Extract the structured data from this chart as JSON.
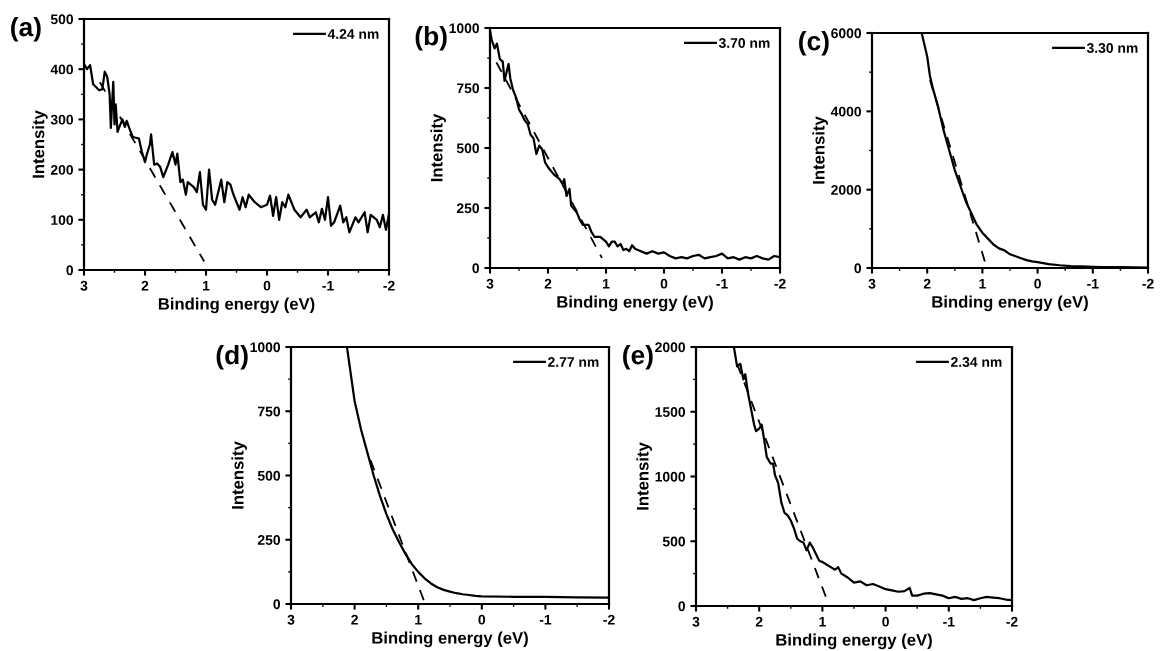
{
  "chart_data": [
    {
      "type": "line",
      "title": "(a)",
      "xlabel": "Binding energy (eV)",
      "ylabel": "Intensity",
      "xlim": [
        3,
        -2
      ],
      "xticks": [
        3,
        2,
        1,
        0,
        -1,
        -2
      ],
      "ylim": [
        0,
        500
      ],
      "yticks": [
        0,
        100,
        200,
        300,
        400,
        500
      ],
      "grid": false,
      "legend": "top right",
      "series": [
        {
          "name": "4.24 nm",
          "color": "#000000",
          "line_style": "solid",
          "x": [
            3.0,
            2.95,
            2.9,
            2.85,
            2.75,
            2.7,
            2.66,
            2.62,
            2.58,
            2.56,
            2.54,
            2.52,
            2.5,
            2.48,
            2.45,
            2.42,
            2.37,
            2.33,
            2.3,
            2.25,
            2.2,
            2.1,
            2.05,
            2.0,
            1.97,
            1.92,
            1.9,
            1.85,
            1.8,
            1.75,
            1.7,
            1.62,
            1.55,
            1.5,
            1.47,
            1.42,
            1.38,
            1.33,
            1.3,
            1.2,
            1.15,
            1.1,
            1.05,
            1.0,
            0.95,
            0.9,
            0.85,
            0.75,
            0.7,
            0.65,
            0.6,
            0.55,
            0.45,
            0.4,
            0.35,
            0.3,
            0.2,
            0.1,
            0.0,
            -0.05,
            -0.1,
            -0.15,
            -0.2,
            -0.25,
            -0.3,
            -0.35,
            -0.45,
            -0.55,
            -0.65,
            -0.7,
            -0.8,
            -0.85,
            -0.9,
            -0.95,
            -1.0,
            -1.05,
            -1.1,
            -1.2,
            -1.25,
            -1.3,
            -1.35,
            -1.45,
            -1.5,
            -1.6,
            -1.65,
            -1.7,
            -1.8,
            -1.85,
            -1.9,
            -1.95,
            -2.0
          ],
          "values": [
            410,
            400,
            408,
            370,
            358,
            360,
            395,
            385,
            350,
            283,
            330,
            375,
            290,
            330,
            275,
            285,
            300,
            285,
            297,
            280,
            265,
            262,
            235,
            215,
            230,
            250,
            270,
            210,
            212,
            205,
            185,
            210,
            235,
            210,
            232,
            175,
            180,
            150,
            175,
            165,
            155,
            195,
            130,
            120,
            200,
            140,
            130,
            180,
            135,
            175,
            170,
            150,
            120,
            145,
            125,
            150,
            135,
            125,
            130,
            148,
            108,
            145,
            100,
            135,
            125,
            150,
            120,
            105,
            120,
            105,
            115,
            95,
            122,
            100,
            145,
            88,
            95,
            128,
            95,
            105,
            75,
            105,
            95,
            115,
            75,
            110,
            100,
            85,
            110,
            80,
            112
          ]
        },
        {
          "color": "#000000",
          "line_style": "dashed",
          "x": [
            2.74,
            1.03
          ],
          "values": [
            374,
            17
          ]
        }
      ]
    },
    {
      "type": "line",
      "title": "(b)",
      "xlabel": "Binding energy (eV)",
      "ylabel": "Intensity",
      "xlim": [
        3,
        -2
      ],
      "xticks": [
        3,
        2,
        1,
        0,
        -1,
        -2
      ],
      "ylim": [
        0,
        1000
      ],
      "yticks": [
        0,
        250,
        500,
        750,
        1000
      ],
      "grid": false,
      "legend": "top right",
      "series": [
        {
          "name": "3.70 nm",
          "color": "#000000",
          "line_style": "solid",
          "x": [
            3.0,
            2.97,
            2.92,
            2.88,
            2.83,
            2.78,
            2.75,
            2.72,
            2.68,
            2.65,
            2.6,
            2.55,
            2.5,
            2.45,
            2.4,
            2.35,
            2.3,
            2.25,
            2.2,
            2.15,
            2.1,
            2.05,
            2.0,
            1.9,
            1.8,
            1.75,
            1.72,
            1.68,
            1.63,
            1.6,
            1.5,
            1.45,
            1.4,
            1.3,
            1.25,
            1.2,
            1.1,
            1.0,
            0.95,
            0.9,
            0.85,
            0.8,
            0.75,
            0.7,
            0.65,
            0.6,
            0.55,
            0.5,
            0.4,
            0.3,
            0.2,
            0.1,
            0.0,
            -0.1,
            -0.2,
            -0.3,
            -0.4,
            -0.5,
            -0.6,
            -0.7,
            -0.8,
            -0.9,
            -1.0,
            -1.1,
            -1.2,
            -1.3,
            -1.4,
            -1.5,
            -1.6,
            -1.7,
            -1.8,
            -1.9,
            -2.0
          ],
          "values": [
            990,
            950,
            915,
            935,
            870,
            860,
            780,
            810,
            850,
            790,
            740,
            710,
            660,
            640,
            615,
            600,
            555,
            540,
            475,
            510,
            495,
            440,
            420,
            390,
            370,
            350,
            370,
            300,
            330,
            260,
            230,
            200,
            180,
            180,
            150,
            130,
            130,
            110,
            90,
            110,
            110,
            90,
            100,
            75,
            80,
            70,
            95,
            80,
            70,
            60,
            70,
            60,
            65,
            50,
            40,
            45,
            40,
            50,
            55,
            40,
            45,
            50,
            60,
            40,
            45,
            35,
            45,
            40,
            50,
            40,
            35,
            50,
            45
          ]
        },
        {
          "color": "#000000",
          "line_style": "dashed",
          "x": [
            2.89,
            1.07
          ],
          "values": [
            857,
            42
          ]
        }
      ]
    },
    {
      "type": "line",
      "title": "(c)",
      "xlabel": "Binding energy (eV)",
      "ylabel": "Intensity",
      "xlim": [
        3,
        -2
      ],
      "xticks": [
        3,
        2,
        1,
        0,
        -1,
        -2
      ],
      "ylim": [
        0,
        6000
      ],
      "yticks": [
        0,
        2000,
        4000,
        6000
      ],
      "grid": false,
      "legend": "top right",
      "series": [
        {
          "name": "3.30 nm",
          "color": "#000000",
          "line_style": "solid",
          "x": [
            2.1,
            2.05,
            2.0,
            1.95,
            1.9,
            1.8,
            1.7,
            1.6,
            1.5,
            1.4,
            1.3,
            1.2,
            1.1,
            1.0,
            0.9,
            0.8,
            0.7,
            0.6,
            0.5,
            0.4,
            0.3,
            0.2,
            0.1,
            0.0,
            -0.2,
            -0.4,
            -0.6,
            -0.8,
            -1.0,
            -1.2,
            -1.5,
            -2.0
          ],
          "values": [
            6000,
            5700,
            5400,
            4900,
            4600,
            4100,
            3500,
            3000,
            2500,
            2100,
            1700,
            1400,
            1100,
            900,
            750,
            600,
            500,
            450,
            350,
            300,
            250,
            200,
            170,
            150,
            100,
            70,
            50,
            40,
            30,
            20,
            20,
            10
          ]
        },
        {
          "color": "#000000",
          "line_style": "dashed",
          "x": [
            1.95,
            0.92
          ],
          "values": [
            4800,
            0
          ]
        }
      ]
    },
    {
      "type": "line",
      "title": "(d)",
      "xlabel": "Binding energy (eV)",
      "ylabel": "Intensity",
      "xlim": [
        3,
        -2
      ],
      "xticks": [
        3,
        2,
        1,
        0,
        -1,
        -2
      ],
      "ylim": [
        0,
        1000
      ],
      "yticks": [
        0,
        250,
        500,
        750,
        1000
      ],
      "grid": false,
      "legend": "top right",
      "series": [
        {
          "name": "2.77 nm",
          "color": "#000000",
          "line_style": "solid",
          "x": [
            2.12,
            2.0,
            1.9,
            1.8,
            1.7,
            1.6,
            1.5,
            1.4,
            1.3,
            1.2,
            1.1,
            1.0,
            0.9,
            0.8,
            0.7,
            0.6,
            0.5,
            0.4,
            0.3,
            0.2,
            0.1,
            0.0,
            -0.5,
            -1.0,
            -1.5,
            -2.0
          ],
          "values": [
            1000,
            790,
            680,
            590,
            500,
            420,
            350,
            290,
            240,
            195,
            155,
            125,
            100,
            80,
            65,
            55,
            48,
            42,
            38,
            35,
            32,
            30,
            28,
            28,
            26,
            25
          ]
        },
        {
          "color": "#000000",
          "line_style": "dashed",
          "x": [
            1.75,
            0.89
          ],
          "values": [
            560,
            0
          ]
        }
      ]
    },
    {
      "type": "line",
      "title": "(e)",
      "xlabel": "Binding energy (eV)",
      "ylabel": "Intensity",
      "xlim": [
        3,
        -2
      ],
      "xticks": [
        3,
        2,
        1,
        0,
        -1,
        -2
      ],
      "ylim": [
        0,
        2000
      ],
      "yticks": [
        0,
        500,
        1000,
        1500,
        2000
      ],
      "grid": false,
      "legend": "top right",
      "series": [
        {
          "name": "2.34 nm",
          "color": "#000000",
          "line_style": "solid",
          "x": [
            2.4,
            2.35,
            2.3,
            2.25,
            2.22,
            2.18,
            2.12,
            2.08,
            2.05,
            2.0,
            1.96,
            1.92,
            1.88,
            1.82,
            1.78,
            1.75,
            1.7,
            1.65,
            1.6,
            1.55,
            1.5,
            1.45,
            1.4,
            1.35,
            1.3,
            1.25,
            1.2,
            1.15,
            1.1,
            1.05,
            1.0,
            0.9,
            0.8,
            0.75,
            0.7,
            0.6,
            0.5,
            0.4,
            0.3,
            0.2,
            0.1,
            0.0,
            -0.1,
            -0.2,
            -0.3,
            -0.38,
            -0.42,
            -0.5,
            -0.6,
            -0.7,
            -0.8,
            -0.9,
            -1.0,
            -1.1,
            -1.2,
            -1.3,
            -1.4,
            -1.5,
            -1.6,
            -1.7,
            -1.8,
            -1.9,
            -2.0
          ],
          "values": [
            2000,
            1850,
            1870,
            1750,
            1790,
            1650,
            1500,
            1400,
            1350,
            1370,
            1400,
            1280,
            1150,
            1100,
            1100,
            1010,
            950,
            800,
            720,
            700,
            660,
            600,
            520,
            500,
            490,
            430,
            490,
            450,
            400,
            350,
            340,
            310,
            280,
            300,
            250,
            220,
            180,
            190,
            160,
            170,
            150,
            130,
            120,
            110,
            115,
            140,
            80,
            80,
            95,
            100,
            90,
            80,
            60,
            70,
            55,
            60,
            45,
            60,
            70,
            65,
            60,
            50,
            45
          ]
        },
        {
          "color": "#000000",
          "line_style": "dashed",
          "x": [
            2.35,
            0.89
          ],
          "values": [
            1870,
            0
          ]
        }
      ]
    }
  ]
}
